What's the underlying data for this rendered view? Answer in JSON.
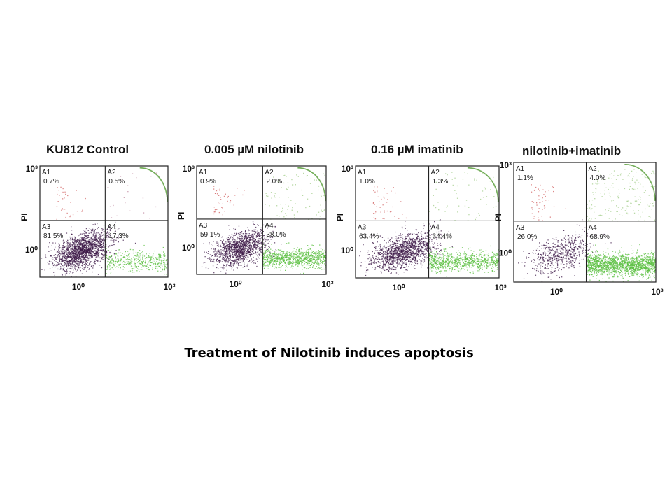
{
  "caption": "Treatment of Nilotinib induces apoptosis",
  "chart_data": [
    {
      "type": "scatter",
      "title": "KU812 Control",
      "ylabel": "PI",
      "x_ticks": [
        "10⁰",
        "10³"
      ],
      "y_ticks": [
        "10³",
        "10⁰"
      ],
      "quadrants": [
        {
          "id": "A1",
          "value": "0.7%"
        },
        {
          "id": "A2",
          "value": "0.5%"
        },
        {
          "id": "A3",
          "value": "81.5%"
        },
        {
          "id": "A4",
          "value": "17.3%"
        }
      ],
      "percent": {
        "A1": 0.7,
        "A2": 0.5,
        "A3": 81.5,
        "A4": 17.3
      },
      "colors": {
        "A1": "#d46a6a",
        "A2": "#c08aa0",
        "A3": "#3d1a48",
        "A4": "#5cc142"
      }
    },
    {
      "type": "scatter",
      "title": "0.005 µM nilotinib",
      "ylabel": "PI",
      "x_ticks": [
        "10⁰",
        "10³"
      ],
      "y_ticks": [
        "10³",
        "10⁰"
      ],
      "quadrants": [
        {
          "id": "A1",
          "value": "0.9%"
        },
        {
          "id": "A2",
          "value": "2.0%"
        },
        {
          "id": "A3",
          "value": "59.1%"
        },
        {
          "id": "A4",
          "value": "38.0%"
        }
      ],
      "percent": {
        "A1": 0.9,
        "A2": 2.0,
        "A3": 59.1,
        "A4": 38.0
      },
      "colors": {
        "A1": "#d46a6a",
        "A2": "#a6cf8e",
        "A3": "#3d1a48",
        "A4": "#5cc142"
      }
    },
    {
      "type": "scatter",
      "title": "0.16 µM imatinib",
      "ylabel": "PI",
      "x_ticks": [
        "10⁰",
        "10³"
      ],
      "y_ticks": [
        "10³",
        "10⁰"
      ],
      "quadrants": [
        {
          "id": "A1",
          "value": "1.0%"
        },
        {
          "id": "A2",
          "value": "1.3%"
        },
        {
          "id": "A3",
          "value": "63.4%"
        },
        {
          "id": "A4",
          "value": "34.4%"
        }
      ],
      "percent": {
        "A1": 1.0,
        "A2": 1.3,
        "A3": 63.4,
        "A4": 34.4
      },
      "colors": {
        "A1": "#d46a6a",
        "A2": "#a6cf8e",
        "A3": "#3d1a48",
        "A4": "#5cc142"
      }
    },
    {
      "type": "scatter",
      "title": "nilotinib+imatinib",
      "ylabel": "PI",
      "x_ticks": [
        "10⁰",
        "10³"
      ],
      "y_ticks": [
        "10³",
        "10⁰"
      ],
      "quadrants": [
        {
          "id": "A1",
          "value": "1.1%"
        },
        {
          "id": "A2",
          "value": "4.0%"
        },
        {
          "id": "A3",
          "value": "26.0%"
        },
        {
          "id": "A4",
          "value": "68.9%"
        }
      ],
      "percent": {
        "A1": 1.1,
        "A2": 4.0,
        "A3": 26.0,
        "A4": 68.9
      },
      "colors": {
        "A1": "#d46a6a",
        "A2": "#a6cf8e",
        "A3": "#3d1a48",
        "A4": "#5cc142"
      }
    }
  ]
}
